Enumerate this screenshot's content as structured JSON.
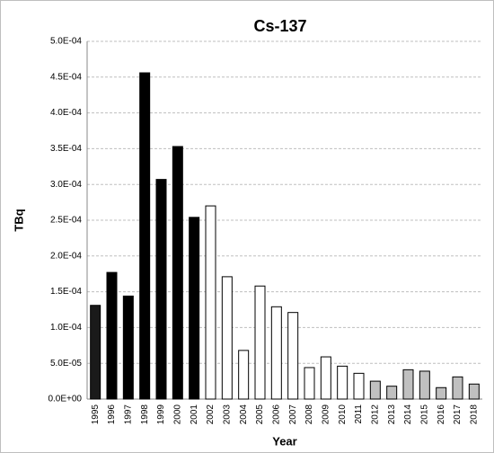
{
  "chart_data": {
    "type": "bar",
    "title": "Cs-137",
    "x_label": "Year",
    "y_label": "TBq",
    "categories": [
      "1995",
      "1996",
      "1997",
      "1998",
      "1999",
      "2000",
      "2001",
      "2002",
      "2003",
      "2004",
      "2005",
      "2006",
      "2007",
      "2008",
      "2009",
      "2010",
      "2011",
      "2012",
      "2013",
      "2014",
      "2015",
      "2016",
      "2017",
      "2018"
    ],
    "values": [
      0.000131,
      0.000177,
      0.000144,
      0.000456,
      0.000307,
      0.000353,
      0.000254,
      0.00027,
      0.000171,
      6.8e-05,
      0.000158,
      0.000129,
      0.000121,
      4.4e-05,
      5.9e-05,
      4.6e-05,
      3.6e-05,
      2.5e-05,
      1.8e-05,
      4.1e-05,
      3.9e-05,
      1.6e-05,
      3.1e-05,
      2.1e-05
    ],
    "colors": [
      "#1a1a1a",
      "#000000",
      "#000000",
      "#000000",
      "#000000",
      "#000000",
      "#000000",
      "#ffffff",
      "#ffffff",
      "#ffffff",
      "#ffffff",
      "#ffffff",
      "#ffffff",
      "#ffffff",
      "#ffffff",
      "#ffffff",
      "#ffffff",
      "#c0c0c0",
      "#c0c0c0",
      "#c0c0c0",
      "#c0c0c0",
      "#c0c0c0",
      "#c0c0c0",
      "#c0c0c0"
    ],
    "ylim": [
      0,
      0.0005
    ],
    "yticks": [
      {
        "value": 0,
        "label": "0.0E+00"
      },
      {
        "value": 5e-05,
        "label": "5.0E-05"
      },
      {
        "value": 0.0001,
        "label": "1.0E-04"
      },
      {
        "value": 0.00015,
        "label": "1.5E-04"
      },
      {
        "value": 0.0002,
        "label": "2.0E-04"
      },
      {
        "value": 0.00025,
        "label": "2.5E-04"
      },
      {
        "value": 0.0003,
        "label": "3.0E-04"
      },
      {
        "value": 0.00035,
        "label": "3.5E-04"
      },
      {
        "value": 0.0004,
        "label": "4.0E-04"
      },
      {
        "value": 0.00045,
        "label": "4.5E-04"
      },
      {
        "value": 0.0005,
        "label": "5.0E-04"
      }
    ],
    "grid": true
  }
}
